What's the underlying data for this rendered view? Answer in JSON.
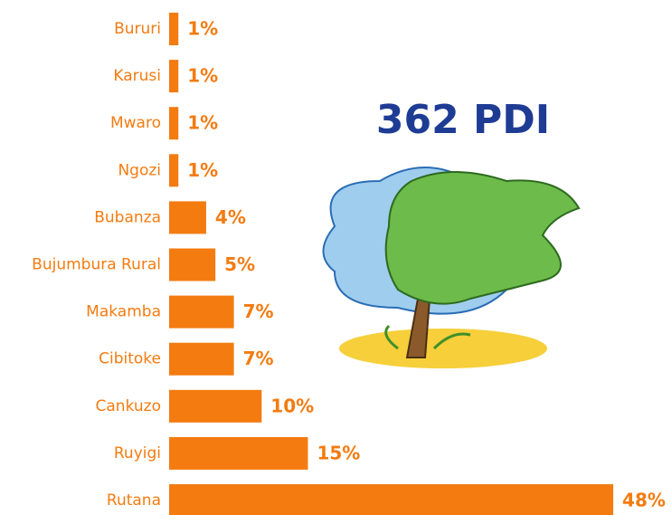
{
  "chart_data": {
    "type": "bar",
    "annotation": "362 PDI",
    "categories": [
      "Bururi",
      "Karusi",
      "Mwaro",
      "Ngozi",
      "Bubanza",
      "Bujumbura Rural",
      "Makamba",
      "Cibitoke",
      "Cankuzo",
      "Ruyigi",
      "Rutana"
    ],
    "values": [
      1,
      1,
      1,
      1,
      4,
      5,
      7,
      7,
      10,
      15,
      48
    ],
    "value_labels": [
      "1%",
      "1%",
      "1%",
      "1%",
      "4%",
      "5%",
      "7%",
      "7%",
      "10%",
      "15%",
      "48%"
    ],
    "color": "#f47b10"
  }
}
